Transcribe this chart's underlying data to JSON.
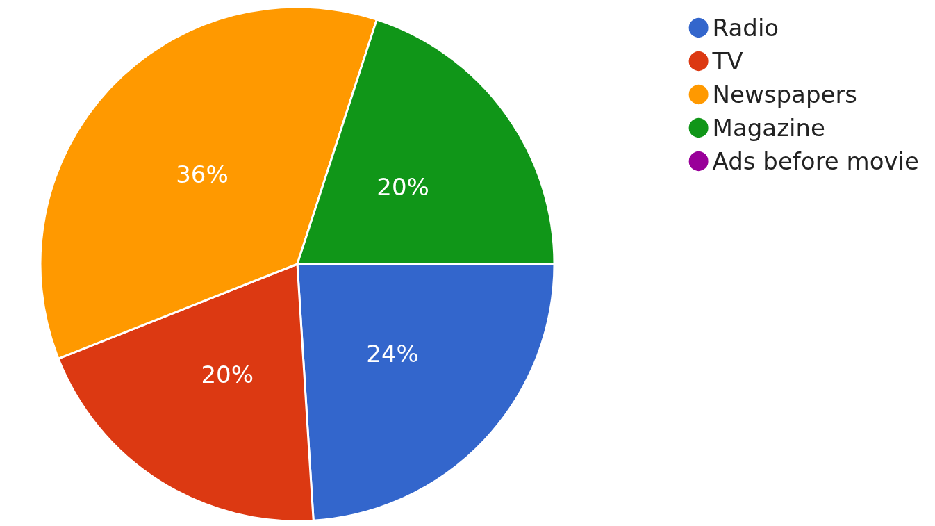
{
  "chart_data": {
    "type": "pie",
    "categories": [
      "Radio",
      "TV",
      "Newspapers",
      "Magazine",
      "Ads before movie"
    ],
    "values": [
      24,
      20,
      36,
      20,
      0
    ],
    "colors": [
      "#3366cc",
      "#dc3912",
      "#ff9900",
      "#109618",
      "#990099"
    ],
    "value_labels": [
      "24%",
      "20%",
      "36%",
      "20%",
      null
    ],
    "legend": "top right"
  }
}
